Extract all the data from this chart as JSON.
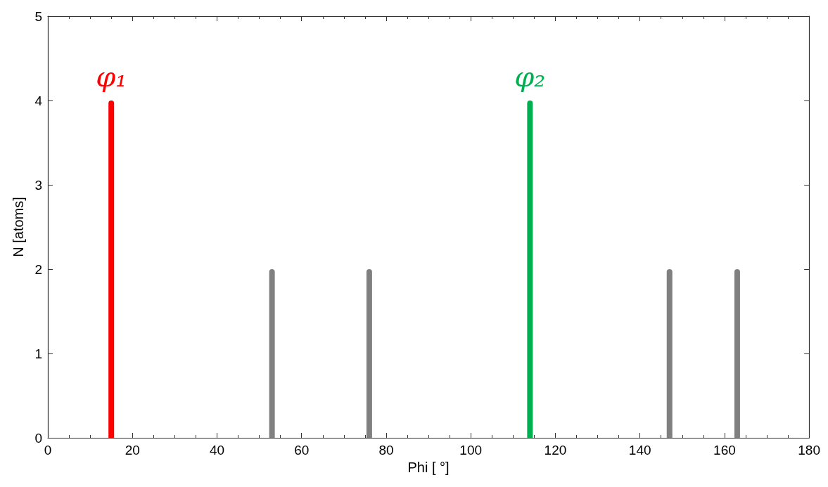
{
  "chart_data": {
    "type": "bar",
    "xlabel": "Phi [ °]",
    "ylabel": "N [atoms]",
    "x": [
      15,
      53,
      76,
      114,
      147,
      163
    ],
    "values": [
      4,
      2,
      2,
      4,
      2,
      2
    ],
    "colors": [
      "#ff0000",
      "#808080",
      "#808080",
      "#00b050",
      "#808080",
      "#808080"
    ],
    "xlim": [
      0,
      180
    ],
    "xticks": [
      0,
      20,
      40,
      60,
      80,
      100,
      120,
      140,
      160,
      180
    ],
    "ylim": [
      0,
      5
    ],
    "yticks": [
      0,
      1,
      2,
      3,
      4,
      5
    ],
    "annotations": [
      {
        "text": "φ₁",
        "x": 15,
        "y": 4
      },
      {
        "text": "φ₂",
        "x": 114,
        "y": 4
      }
    ],
    "grid": false
  }
}
